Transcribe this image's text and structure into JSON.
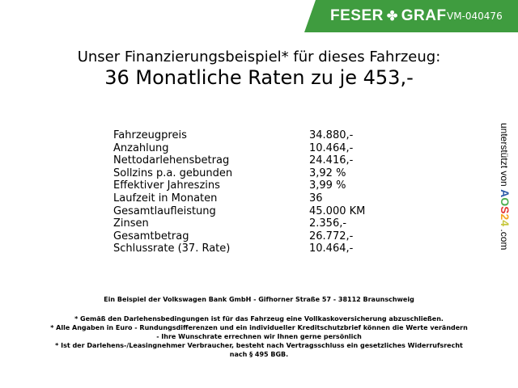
{
  "header": {
    "brand_left": "FESER",
    "brand_right": "GRAF",
    "code": "VM-040476",
    "accent": "#3f9c3f"
  },
  "title": {
    "line1": "Unser Finanzierungsbeispiel* für dieses Fahrzeug:",
    "line2": "36 Monatliche Raten zu je 453,-"
  },
  "rows": [
    {
      "label": "Fahrzeugpreis",
      "value": "34.880,-"
    },
    {
      "label": "Anzahlung",
      "value": "10.464,-"
    },
    {
      "label": "Nettodarlehensbetrag",
      "value": "24.416,-"
    },
    {
      "label": "Sollzins p.a. gebunden",
      "value": "3,92 %"
    },
    {
      "label": "Effektiver Jahreszins",
      "value": "3,99 %"
    },
    {
      "label": "Laufzeit in Monaten",
      "value": "36"
    },
    {
      "label": "Gesamtlaufleistung",
      "value": "45.000 KM"
    },
    {
      "label": "Zinsen",
      "value": "2.356,-"
    },
    {
      "label": "Gesamtbetrag",
      "value": "26.772,-"
    },
    {
      "label": "Schlussrate (37. Rate)",
      "value": "10.464,-"
    }
  ],
  "side": {
    "prefix": "unterstützt von",
    "logo": [
      "A",
      "O",
      "S",
      "2",
      "4"
    ],
    "suffix": ".com"
  },
  "bank": "Ein Beispiel der Volkswagen Bank GmbH - Gifhorner Straße 57 - 38112 Braunschweig",
  "notes": [
    "* Gemäß den Darlehensbedingungen ist für das Fahrzeug eine Vollkaskoversicherung abzuschließen.",
    "* Alle Angaben in Euro - Rundungsdifferenzen und ein individueller Kreditschutzbrief können die Werte verändern",
    "- Ihre Wunschrate errechnen wir Ihnen gerne persönlich",
    "* Ist der Darlehens-/Leasingnehmer Verbraucher, besteht nach Vertragsschluss ein gesetzliches Widerrufsrecht",
    "nach § 495 BGB."
  ]
}
